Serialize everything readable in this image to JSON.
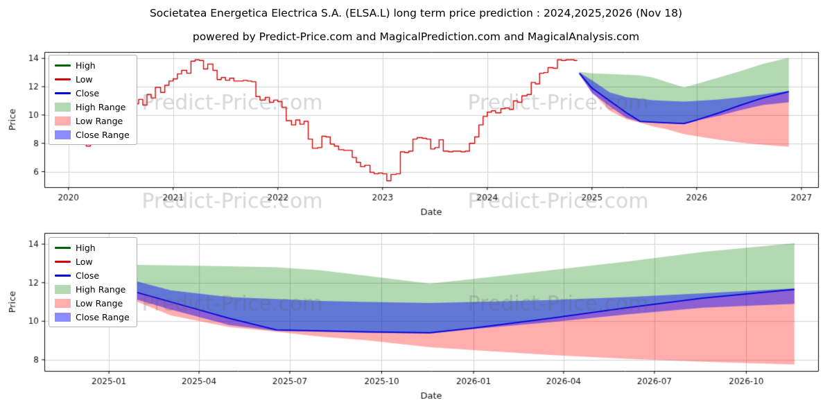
{
  "figure": {
    "title": "Societatea Energetica Electrica S.A. (ELSA.L) long term price prediction : 2024,2025,2026 (Nov 18)",
    "subtitle": "powered by Predict-Price.com and MagicalPrediction.com and MagicalAnalysis.com",
    "watermark_text": "Predict-Price.com",
    "background": "#ffffff"
  },
  "colors": {
    "high_line": "#006400",
    "low_line": "#d40000",
    "close_line": "#0000dd",
    "high_range_fill": "rgba(0,128,0,0.30)",
    "low_range_fill": "rgba(255,0,0,0.32)",
    "close_range_fill": "rgba(0,0,255,0.45)",
    "grid": "#d0d0d0",
    "spine": "#000000",
    "tick_text": "#111111",
    "watermark": "rgba(90,90,90,0.25)"
  },
  "legend": {
    "items": [
      {
        "label": "High",
        "kind": "line",
        "color_key": "high_line"
      },
      {
        "label": "Low",
        "kind": "line",
        "color_key": "low_line"
      },
      {
        "label": "Close",
        "kind": "line",
        "color_key": "close_line"
      },
      {
        "label": "High Range",
        "kind": "patch",
        "color_key": "high_range_fill"
      },
      {
        "label": "Low Range",
        "kind": "patch",
        "color_key": "low_range_fill"
      },
      {
        "label": "Close Range",
        "kind": "patch",
        "color_key": "close_range_fill"
      }
    ]
  },
  "chart_data": [
    {
      "type": "line",
      "name": "history-and-long-term-prediction",
      "xlabel": "Date",
      "ylabel": "Price",
      "xlim": [
        2019.77,
        2027.16
      ],
      "ylim": [
        4.9,
        14.45
      ],
      "xticks": [
        {
          "v": 2020,
          "label": "2020"
        },
        {
          "v": 2021,
          "label": "2021"
        },
        {
          "v": 2022,
          "label": "2022"
        },
        {
          "v": 2023,
          "label": "2023"
        },
        {
          "v": 2024,
          "label": "2024"
        },
        {
          "v": 2025,
          "label": "2025"
        },
        {
          "v": 2026,
          "label": "2026"
        },
        {
          "v": 2027,
          "label": "2027"
        }
      ],
      "yticks": [
        {
          "v": 6,
          "label": "6"
        },
        {
          "v": 8,
          "label": "8"
        },
        {
          "v": 10,
          "label": "10"
        },
        {
          "v": 12,
          "label": "12"
        },
        {
          "v": 14,
          "label": "14"
        }
      ],
      "history": {
        "series_label": "Low",
        "points": [
          [
            2020.13,
            8.35
          ],
          [
            2020.17,
            7.8
          ],
          [
            2020.21,
            8.55
          ],
          [
            2020.29,
            9.1
          ],
          [
            2020.38,
            9.0
          ],
          [
            2020.46,
            9.6
          ],
          [
            2020.54,
            10.3
          ],
          [
            2020.6,
            11.25
          ],
          [
            2020.63,
            10.8
          ],
          [
            2020.67,
            11.1
          ],
          [
            2020.71,
            10.7
          ],
          [
            2020.75,
            11.45
          ],
          [
            2020.79,
            11.2
          ],
          [
            2020.83,
            11.95
          ],
          [
            2020.88,
            11.6
          ],
          [
            2020.92,
            12.1
          ],
          [
            2020.96,
            12.4
          ],
          [
            2021.0,
            12.55
          ],
          [
            2021.04,
            12.9
          ],
          [
            2021.08,
            13.15
          ],
          [
            2021.13,
            12.95
          ],
          [
            2021.17,
            13.8
          ],
          [
            2021.21,
            13.9
          ],
          [
            2021.25,
            13.85
          ],
          [
            2021.29,
            13.25
          ],
          [
            2021.33,
            13.6
          ],
          [
            2021.38,
            13.15
          ],
          [
            2021.42,
            12.5
          ],
          [
            2021.46,
            12.65
          ],
          [
            2021.5,
            12.45
          ],
          [
            2021.54,
            12.6
          ],
          [
            2021.58,
            12.4
          ],
          [
            2021.67,
            12.45
          ],
          [
            2021.71,
            12.4
          ],
          [
            2021.75,
            12.35
          ],
          [
            2021.79,
            11.3
          ],
          [
            2021.83,
            11.05
          ],
          [
            2021.88,
            11.25
          ],
          [
            2021.92,
            10.9
          ],
          [
            2021.96,
            11.05
          ],
          [
            2022.0,
            10.95
          ],
          [
            2022.04,
            10.55
          ],
          [
            2022.08,
            9.6
          ],
          [
            2022.13,
            9.3
          ],
          [
            2022.17,
            9.65
          ],
          [
            2022.21,
            9.35
          ],
          [
            2022.25,
            9.55
          ],
          [
            2022.29,
            8.3
          ],
          [
            2022.33,
            7.65
          ],
          [
            2022.38,
            7.7
          ],
          [
            2022.42,
            8.5
          ],
          [
            2022.46,
            8.45
          ],
          [
            2022.5,
            7.95
          ],
          [
            2022.54,
            7.8
          ],
          [
            2022.58,
            7.55
          ],
          [
            2022.63,
            7.5
          ],
          [
            2022.71,
            7.0
          ],
          [
            2022.75,
            6.65
          ],
          [
            2022.79,
            6.35
          ],
          [
            2022.83,
            6.45
          ],
          [
            2022.88,
            5.95
          ],
          [
            2022.92,
            5.85
          ],
          [
            2022.96,
            5.9
          ],
          [
            2023.0,
            5.85
          ],
          [
            2023.04,
            5.35
          ],
          [
            2023.08,
            5.8
          ],
          [
            2023.13,
            5.85
          ],
          [
            2023.17,
            7.4
          ],
          [
            2023.21,
            7.35
          ],
          [
            2023.25,
            7.45
          ],
          [
            2023.29,
            8.3
          ],
          [
            2023.33,
            8.4
          ],
          [
            2023.38,
            8.35
          ],
          [
            2023.42,
            8.3
          ],
          [
            2023.46,
            7.6
          ],
          [
            2023.5,
            7.7
          ],
          [
            2023.54,
            8.25
          ],
          [
            2023.58,
            7.45
          ],
          [
            2023.63,
            7.4
          ],
          [
            2023.67,
            7.45
          ],
          [
            2023.75,
            7.4
          ],
          [
            2023.79,
            7.45
          ],
          [
            2023.83,
            8.0
          ],
          [
            2023.88,
            8.45
          ],
          [
            2023.92,
            9.3
          ],
          [
            2023.96,
            9.9
          ],
          [
            2024.0,
            10.2
          ],
          [
            2024.04,
            10.3
          ],
          [
            2024.08,
            10.15
          ],
          [
            2024.13,
            10.45
          ],
          [
            2024.17,
            10.5
          ],
          [
            2024.21,
            10.4
          ],
          [
            2024.25,
            11.0
          ],
          [
            2024.29,
            10.9
          ],
          [
            2024.33,
            11.35
          ],
          [
            2024.38,
            11.45
          ],
          [
            2024.42,
            12.3
          ],
          [
            2024.46,
            12.2
          ],
          [
            2024.5,
            12.95
          ],
          [
            2024.54,
            13.0
          ],
          [
            2024.58,
            13.35
          ],
          [
            2024.63,
            13.3
          ],
          [
            2024.67,
            13.9
          ],
          [
            2024.71,
            13.85
          ],
          [
            2024.75,
            13.9
          ],
          [
            2024.79,
            13.9
          ],
          [
            2024.83,
            13.85
          ],
          [
            2024.86,
            13.85
          ]
        ]
      },
      "prediction": {
        "x": [
          2024.88,
          2025.0,
          2025.17,
          2025.33,
          2025.46,
          2025.58,
          2025.71,
          2025.88,
          2026.0,
          2026.21,
          2026.42,
          2026.63,
          2026.88
        ],
        "close": [
          12.95,
          11.9,
          11.0,
          10.15,
          9.55,
          9.5,
          9.45,
          9.4,
          9.65,
          10.15,
          10.7,
          11.2,
          11.65
        ],
        "high_top": [
          13.05,
          12.95,
          12.9,
          12.85,
          12.8,
          12.65,
          12.35,
          11.95,
          12.2,
          12.65,
          13.1,
          13.6,
          14.05
        ],
        "low_bottom": [
          12.85,
          11.6,
          10.3,
          9.7,
          9.45,
          9.2,
          9.0,
          8.65,
          8.5,
          8.25,
          8.05,
          7.9,
          7.75
        ],
        "close_upper": [
          13.0,
          12.45,
          11.6,
          11.25,
          11.15,
          11.05,
          11.0,
          10.95,
          11.0,
          11.1,
          11.25,
          11.45,
          11.7
        ],
        "close_lower": [
          12.9,
          11.55,
          10.6,
          9.8,
          9.5,
          9.45,
          9.4,
          9.35,
          9.6,
          9.95,
          10.35,
          10.7,
          10.9
        ]
      }
    },
    {
      "type": "line",
      "name": "prediction-zoom",
      "xlabel": "Date",
      "ylabel": "Price",
      "xlim": [
        2024.823,
        2026.945
      ],
      "ylim": [
        7.42,
        14.58
      ],
      "xticks": [
        {
          "v": 2025.0,
          "label": "2025-01"
        },
        {
          "v": 2025.247,
          "label": "2025-04"
        },
        {
          "v": 2025.496,
          "label": "2025-07"
        },
        {
          "v": 2025.748,
          "label": "2025-10"
        },
        {
          "v": 2026.0,
          "label": "2026-01"
        },
        {
          "v": 2026.247,
          "label": "2026-04"
        },
        {
          "v": 2026.496,
          "label": "2026-07"
        },
        {
          "v": 2026.748,
          "label": "2026-10"
        }
      ],
      "yticks": [
        {
          "v": 8,
          "label": "8"
        },
        {
          "v": 10,
          "label": "10"
        },
        {
          "v": 12,
          "label": "12"
        },
        {
          "v": 14,
          "label": "14"
        }
      ],
      "prediction_from_chart": 0
    }
  ]
}
